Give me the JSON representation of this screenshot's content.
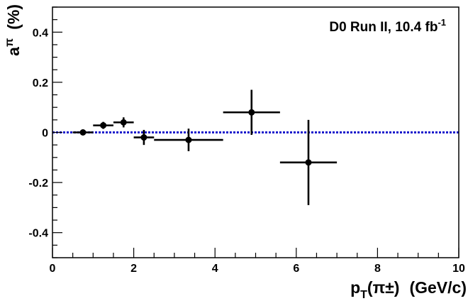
{
  "chart_data": {
    "type": "scatter",
    "annotation": {
      "text": "D0 Run II, 10.4 fb",
      "superscript": "-1"
    },
    "xlabel": {
      "prefix": "p",
      "subscript": "T",
      "argument": "(π±)",
      "unit": "(GeV/c)"
    },
    "ylabel": {
      "symbol": "a",
      "superscript": "π",
      "unit": "(%)"
    },
    "xlim": [
      0,
      10
    ],
    "ylim": [
      -0.5,
      0.5
    ],
    "x_ticks": [
      0,
      2,
      4,
      6,
      8,
      10
    ],
    "y_ticks": [
      -0.4,
      -0.2,
      0,
      0.2,
      0.4
    ],
    "reference_line": {
      "y": 0,
      "style": "dotted",
      "color": "#1a1acc"
    },
    "grid": false,
    "points": [
      {
        "x": 0.75,
        "y": 0.0,
        "x_low": 0.5,
        "x_high": 1.0,
        "y_err": 0.005
      },
      {
        "x": 1.25,
        "y": 0.028,
        "x_low": 1.0,
        "x_high": 1.5,
        "y_err": 0.014
      },
      {
        "x": 1.75,
        "y": 0.04,
        "x_low": 1.5,
        "x_high": 2.0,
        "y_err": 0.02
      },
      {
        "x": 2.25,
        "y": -0.02,
        "x_low": 2.0,
        "x_high": 2.5,
        "y_err": 0.03
      },
      {
        "x": 3.35,
        "y": -0.03,
        "x_low": 2.5,
        "x_high": 4.2,
        "y_err": 0.045
      },
      {
        "x": 4.9,
        "y": 0.08,
        "x_low": 4.2,
        "x_high": 5.6,
        "y_err": 0.09
      },
      {
        "x": 6.3,
        "y": -0.12,
        "x_low": 5.6,
        "x_high": 7.0,
        "y_err": 0.17
      }
    ]
  }
}
